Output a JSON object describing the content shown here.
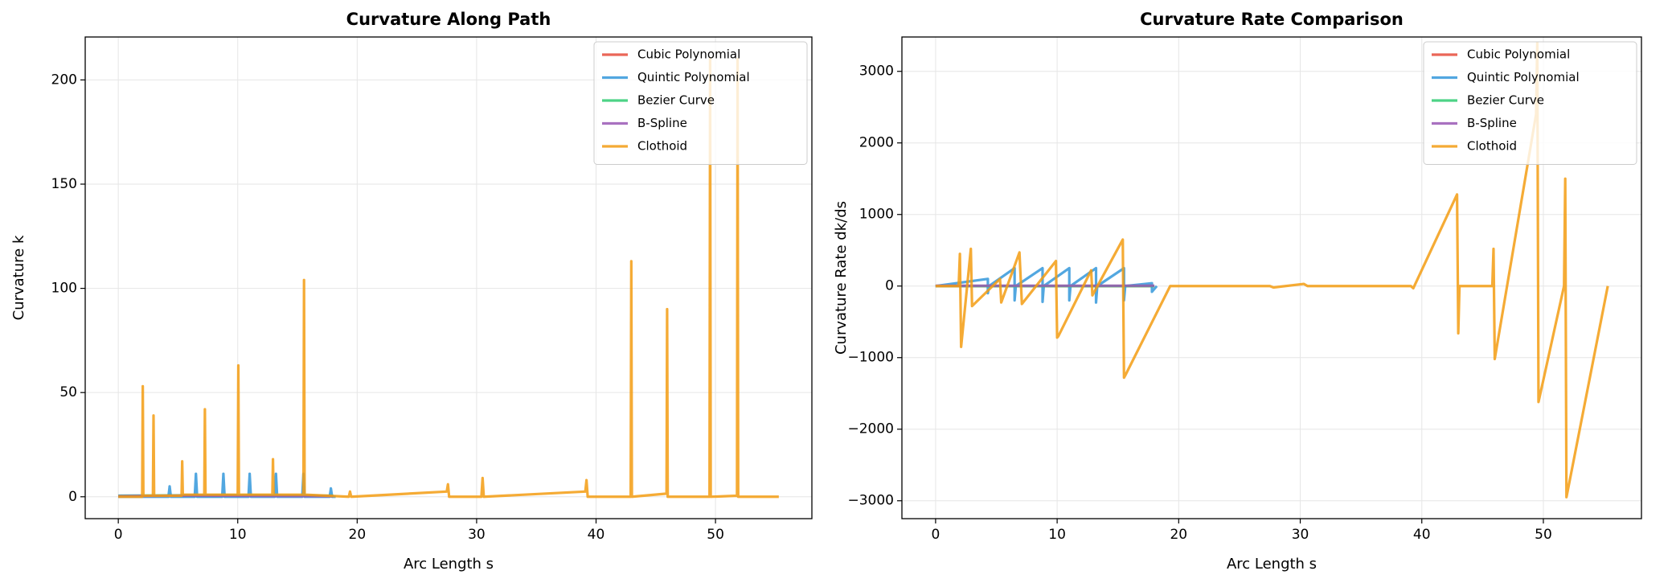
{
  "chart_data": [
    {
      "type": "line",
      "title": "Curvature Along Path",
      "xlabel": "Arc Length s",
      "ylabel": "Curvature k",
      "xlim": [
        -2.77,
        58.07
      ],
      "ylim": [
        -10.5,
        220.6
      ],
      "xticks": [
        0,
        10,
        20,
        30,
        40,
        50
      ],
      "yticks": [
        0,
        50,
        100,
        150,
        200
      ],
      "grid": true,
      "legend": "upper right",
      "series": [
        {
          "name": "Cubic Polynomial",
          "color": "#e74c3c",
          "x": [
            0,
            4,
            8,
            12,
            16,
            18
          ],
          "values": [
            0.2,
            0.5,
            0.3,
            0.6,
            0.4,
            0.2
          ]
        },
        {
          "name": "Quintic Polynomial",
          "color": "#3498db",
          "x": [
            0,
            4.2,
            4.3,
            4.4,
            6.4,
            6.5,
            6.6,
            8.7,
            8.8,
            8.9,
            10.9,
            11,
            11.1,
            13.1,
            13.2,
            13.3,
            15.4,
            15.5,
            15.6,
            17.7,
            17.8,
            17.9,
            18.2
          ],
          "values": [
            0,
            0,
            5,
            0,
            0,
            11,
            0,
            0,
            11,
            0,
            0,
            11,
            0,
            0,
            11,
            0,
            0,
            11,
            0,
            0,
            4,
            0,
            0
          ]
        },
        {
          "name": "Bezier Curve",
          "color": "#2ecc71",
          "x": [
            0,
            9,
            18
          ],
          "values": [
            0.5,
            0.8,
            0.5
          ]
        },
        {
          "name": "B-Spline",
          "color": "#9b59b6",
          "x": [
            0,
            6,
            12,
            18
          ],
          "values": [
            0.3,
            0.6,
            0.4,
            0.3
          ]
        },
        {
          "name": "Clothoid",
          "color": "#f39c12",
          "x": [
            0,
            2,
            2.05,
            2.1,
            2.9,
            2.95,
            3,
            5.3,
            5.35,
            5.4,
            7.2,
            7.25,
            7.3,
            10,
            10.05,
            10.1,
            12.9,
            12.95,
            13,
            15.5,
            15.55,
            15.6,
            19.3,
            19.4,
            19.5,
            27.5,
            27.6,
            27.7,
            30.4,
            30.5,
            30.6,
            39.1,
            39.2,
            39.3,
            42.9,
            42.95,
            43,
            45.9,
            45.95,
            46,
            49.5,
            49.55,
            49.6,
            51.8,
            51.85,
            51.9,
            55.3
          ],
          "values": [
            0,
            0,
            53,
            0.5,
            0.5,
            39,
            0.5,
            0.5,
            17,
            1,
            1,
            42,
            1,
            1,
            63,
            1,
            1,
            18,
            1,
            1,
            104,
            1,
            0,
            2.5,
            0,
            2.5,
            6,
            0,
            0,
            9,
            0,
            2.5,
            8,
            0,
            0,
            113,
            0,
            1.5,
            90,
            0,
            0,
            210,
            0,
            0.5,
            210,
            0,
            0
          ]
        }
      ]
    },
    {
      "type": "line",
      "title": "Curvature Rate Comparison",
      "xlabel": "Arc Length s",
      "ylabel": "Curvature Rate dk/ds",
      "xlim": [
        -2.77,
        58.07
      ],
      "ylim": [
        -3250,
        3480
      ],
      "xticks": [
        0,
        10,
        20,
        30,
        40,
        50
      ],
      "yticks": [
        {
          "value": -3000,
          "label": "−3000"
        },
        {
          "value": -2000,
          "label": "−2000"
        },
        {
          "value": -1000,
          "label": "−1000"
        },
        0,
        1000,
        2000,
        3000
      ],
      "grid": true,
      "legend": "upper right",
      "series": [
        {
          "name": "Cubic Polynomial",
          "color": "#e74c3c",
          "x": [
            0,
            18
          ],
          "values": [
            0,
            0
          ]
        },
        {
          "name": "Quintic Polynomial",
          "color": "#3498db",
          "x": [
            0,
            4.3,
            4.3,
            4.4,
            6.5,
            6.5,
            6.6,
            8.8,
            8.8,
            8.9,
            11,
            11,
            11.1,
            13.2,
            13.2,
            13.3,
            15.5,
            15.5,
            15.6,
            17.8,
            17.8,
            18.2
          ],
          "values": [
            0,
            100,
            -100,
            0,
            250,
            -200,
            0,
            250,
            -220,
            0,
            250,
            -200,
            0,
            250,
            -230,
            0,
            250,
            -200,
            0,
            40,
            -80,
            0
          ]
        },
        {
          "name": "Bezier Curve",
          "color": "#2ecc71",
          "x": [
            0,
            18
          ],
          "values": [
            0,
            0
          ]
        },
        {
          "name": "B-Spline",
          "color": "#9b59b6",
          "x": [
            0,
            18
          ],
          "values": [
            5,
            5
          ]
        },
        {
          "name": "Clothoid",
          "color": "#f39c12",
          "x": [
            0,
            1.9,
            2,
            2.1,
            2.9,
            3.0,
            5.3,
            5.4,
            6.9,
            7.1,
            9.9,
            10.0,
            10.1,
            12.8,
            12.9,
            15.4,
            15.5,
            15.6,
            19.3,
            27.5,
            27.8,
            30.3,
            30.6,
            39.1,
            39.3,
            42.9,
            43.0,
            43.1,
            45.8,
            45.9,
            46.0,
            49.4,
            49.5,
            49.6,
            51.7,
            51.8,
            51.9,
            55.3
          ],
          "values": [
            0,
            0,
            450,
            -850,
            520,
            -280,
            100,
            -230,
            470,
            -250,
            350,
            -720,
            -700,
            220,
            -130,
            650,
            -1280,
            -1250,
            0,
            0,
            -20,
            30,
            0,
            0,
            -30,
            1280,
            -660,
            0,
            0,
            520,
            -1020,
            2400,
            3400,
            -1620,
            0,
            1500,
            -2950,
            0
          ]
        }
      ]
    }
  ]
}
